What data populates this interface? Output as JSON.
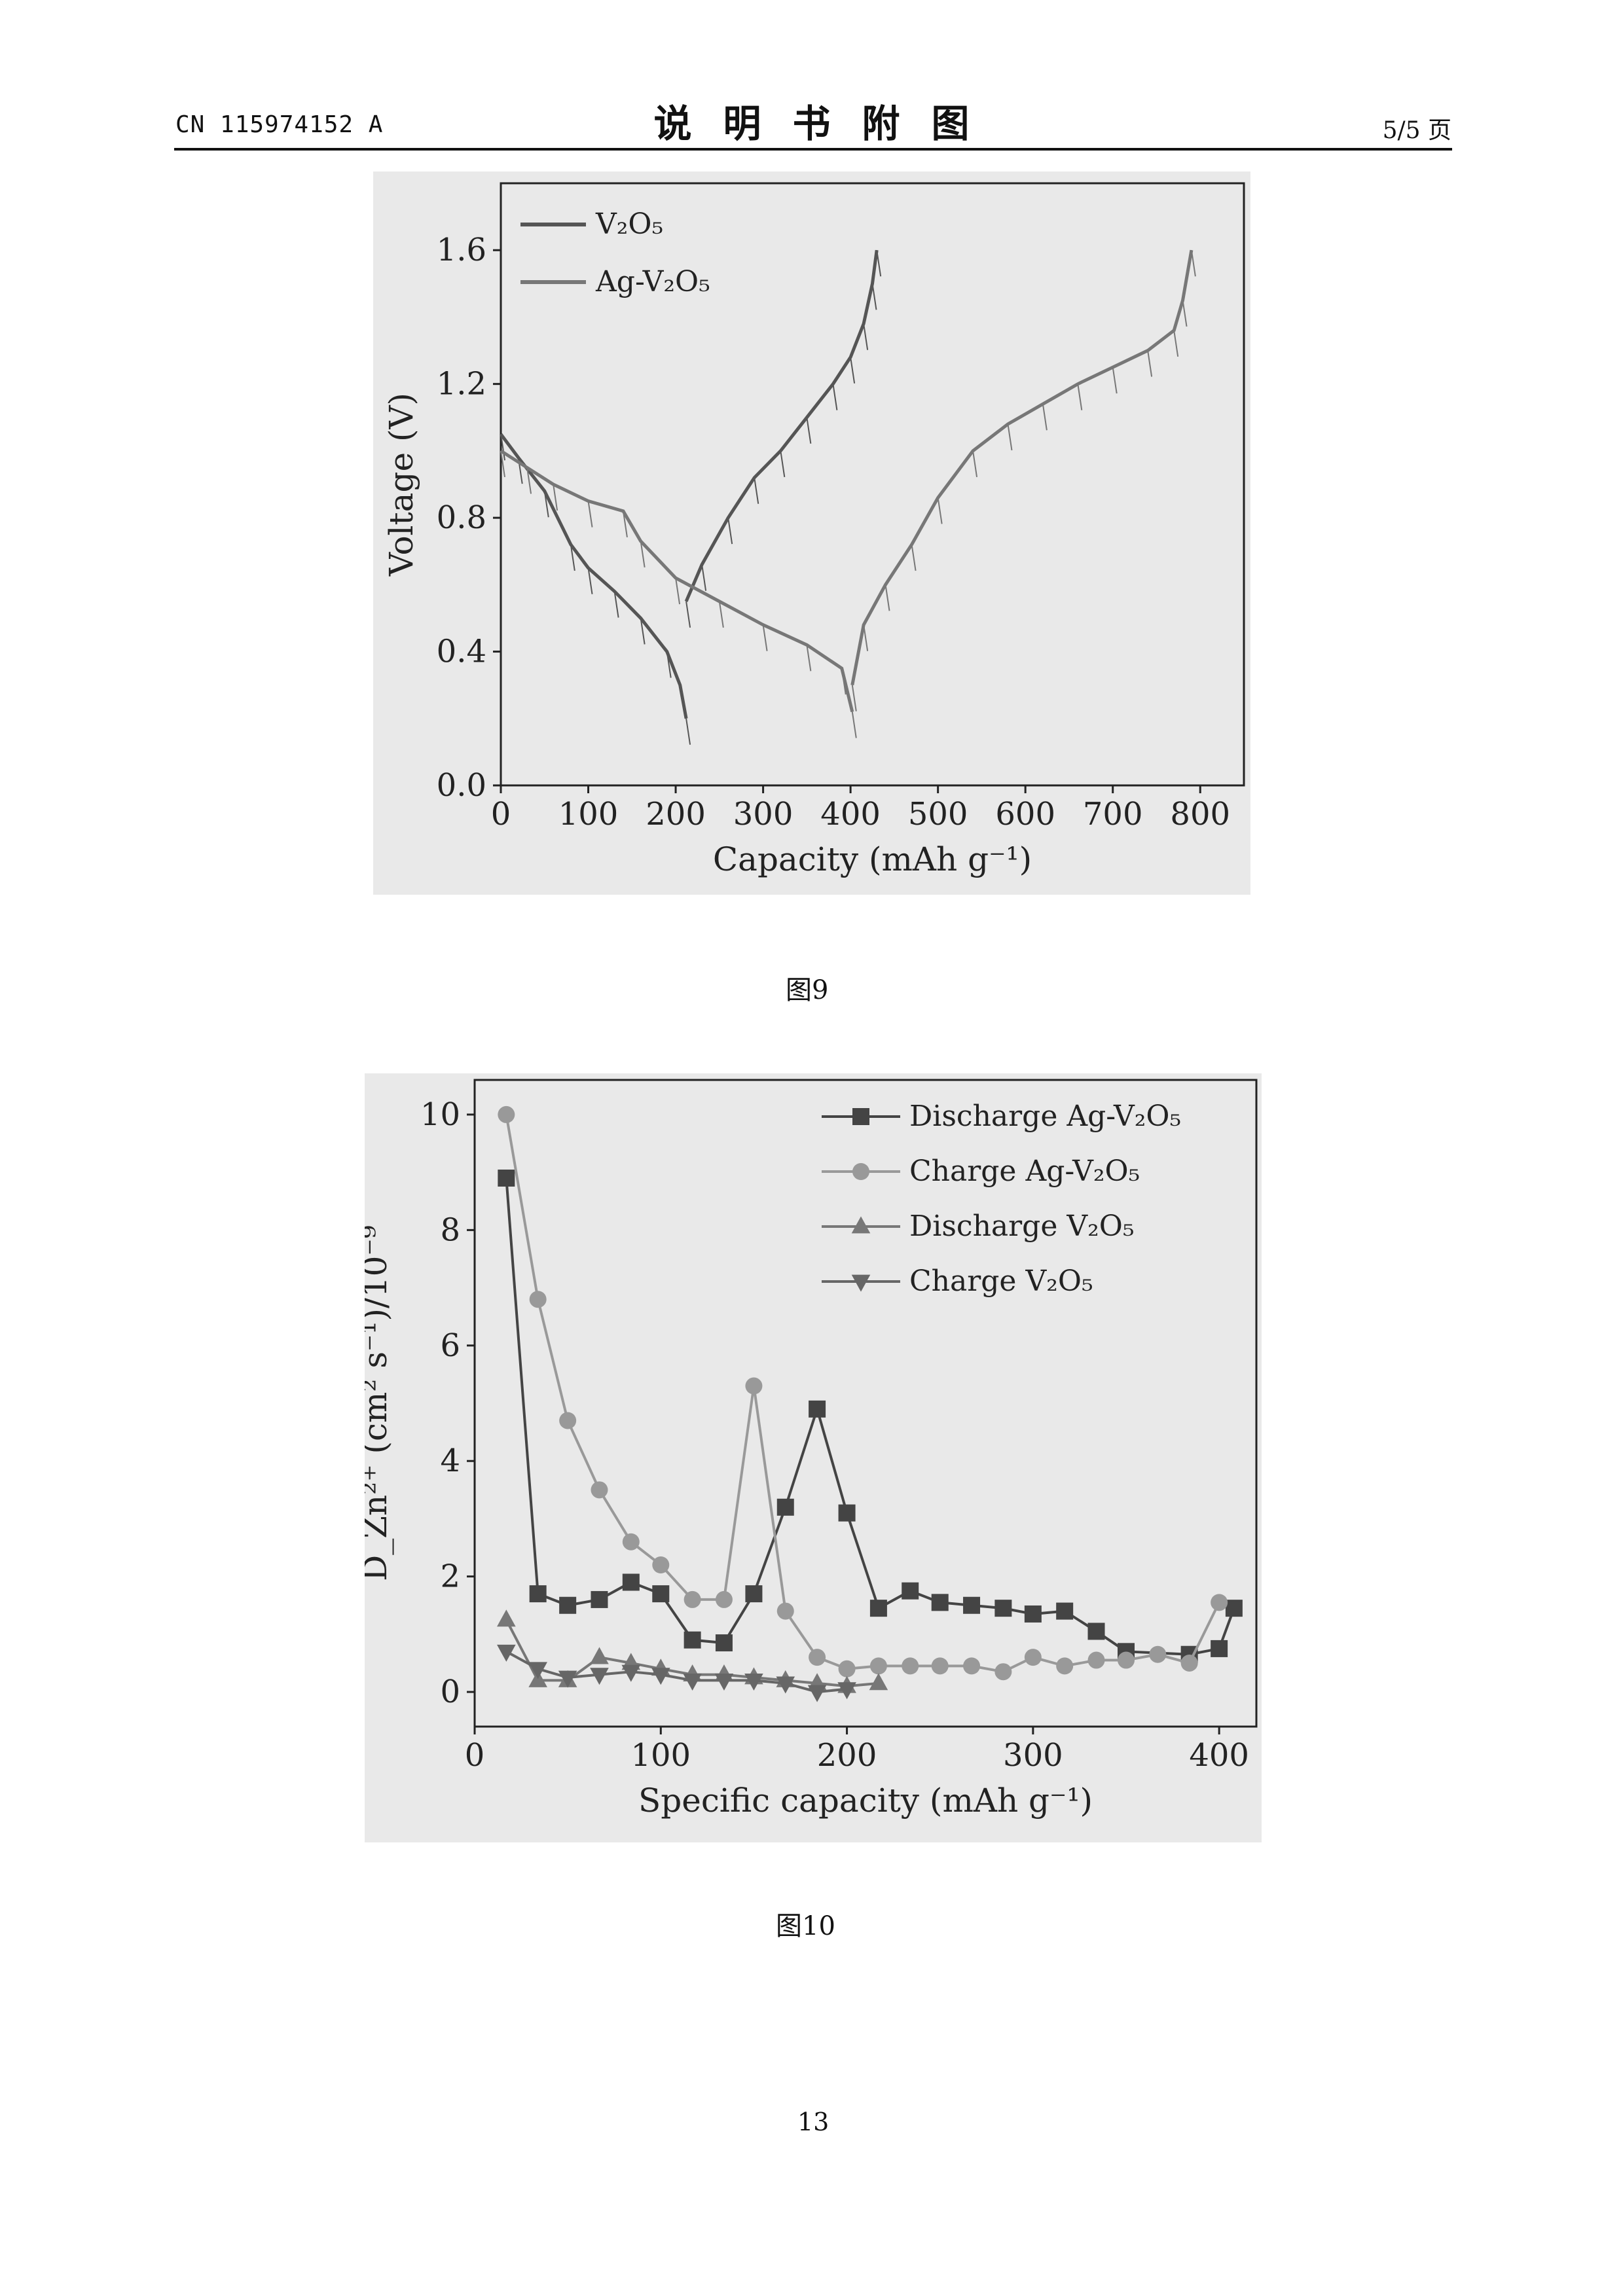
{
  "header": {
    "patent_no": "CN 115974152 A",
    "section_title": "说明书附图",
    "page_of": "5/5 页"
  },
  "captions": {
    "fig9": "图9",
    "fig10": "图10"
  },
  "page_number": "13",
  "colors": {
    "axis": "#222222",
    "v2o5": "#555555",
    "ag_v2o5": "#777777",
    "discharge_ag": "#444444",
    "charge_ag": "#999999",
    "discharge_v": "#777777",
    "charge_v": "#666666"
  },
  "chart_data": [
    {
      "type": "line",
      "title": "",
      "xlabel": "Capacity (mAh g⁻¹)",
      "ylabel": "Voltage (V)",
      "xlim": [
        0,
        850
      ],
      "ylim": [
        0,
        1.8
      ],
      "xticks": [
        "0",
        "100",
        "200",
        "300",
        "400",
        "500",
        "600",
        "700",
        "800"
      ],
      "yticks": [
        "0.0",
        "0.4",
        "0.8",
        "1.2",
        "1.6"
      ],
      "grid": false,
      "legend": "top-left",
      "series": [
        {
          "name": "V₂O₅",
          "discharge": [
            [
              0,
              1.05
            ],
            [
              20,
              0.98
            ],
            [
              50,
              0.88
            ],
            [
              80,
              0.72
            ],
            [
              100,
              0.65
            ],
            [
              130,
              0.58
            ],
            [
              160,
              0.5
            ],
            [
              190,
              0.4
            ],
            [
              205,
              0.3
            ],
            [
              212,
              0.2
            ]
          ],
          "charge": [
            [
              212,
              0.55
            ],
            [
              230,
              0.66
            ],
            [
              260,
              0.8
            ],
            [
              290,
              0.92
            ],
            [
              320,
              1.0
            ],
            [
              350,
              1.1
            ],
            [
              380,
              1.2
            ],
            [
              400,
              1.28
            ],
            [
              415,
              1.38
            ],
            [
              425,
              1.5
            ],
            [
              430,
              1.6
            ]
          ]
        },
        {
          "name": "Ag-V₂O₅",
          "discharge": [
            [
              0,
              1.0
            ],
            [
              30,
              0.95
            ],
            [
              60,
              0.9
            ],
            [
              100,
              0.85
            ],
            [
              140,
              0.82
            ],
            [
              160,
              0.73
            ],
            [
              200,
              0.62
            ],
            [
              250,
              0.55
            ],
            [
              300,
              0.48
            ],
            [
              350,
              0.42
            ],
            [
              390,
              0.35
            ],
            [
              402,
              0.22
            ]
          ],
          "charge": [
            [
              402,
              0.3
            ],
            [
              415,
              0.48
            ],
            [
              440,
              0.6
            ],
            [
              470,
              0.72
            ],
            [
              500,
              0.86
            ],
            [
              540,
              1.0
            ],
            [
              580,
              1.08
            ],
            [
              620,
              1.14
            ],
            [
              660,
              1.2
            ],
            [
              700,
              1.25
            ],
            [
              740,
              1.3
            ],
            [
              770,
              1.36
            ],
            [
              780,
              1.45
            ],
            [
              790,
              1.6
            ]
          ]
        }
      ]
    },
    {
      "type": "line",
      "title": "",
      "xlabel": "Specific capacity (mAh g⁻¹)",
      "ylabel": "D_Zn²⁺ (cm² s⁻¹)/10⁻⁹",
      "xlim": [
        0,
        420
      ],
      "ylim": [
        -0.6,
        10.6
      ],
      "xticks": [
        "0",
        "100",
        "200",
        "300",
        "400"
      ],
      "yticks": [
        "0",
        "2",
        "4",
        "6",
        "8",
        "10"
      ],
      "grid": false,
      "legend": "top-right",
      "series": [
        {
          "name": "Discharge Ag-V₂O₅",
          "marker": "square",
          "points": [
            [
              17,
              8.9
            ],
            [
              34,
              1.7
            ],
            [
              50,
              1.5
            ],
            [
              67,
              1.6
            ],
            [
              84,
              1.9
            ],
            [
              100,
              1.7
            ],
            [
              117,
              0.9
            ],
            [
              134,
              0.85
            ],
            [
              150,
              1.7
            ],
            [
              167,
              3.2
            ],
            [
              184,
              4.9
            ],
            [
              200,
              3.1
            ],
            [
              217,
              1.45
            ],
            [
              234,
              1.75
            ],
            [
              250,
              1.55
            ],
            [
              267,
              1.5
            ],
            [
              284,
              1.45
            ],
            [
              300,
              1.35
            ],
            [
              317,
              1.4
            ],
            [
              334,
              1.05
            ],
            [
              350,
              0.7
            ],
            [
              384,
              0.65
            ],
            [
              400,
              0.75
            ],
            [
              408,
              1.45
            ]
          ]
        },
        {
          "name": "Charge Ag-V₂O₅",
          "marker": "circle",
          "points": [
            [
              17,
              10.0
            ],
            [
              34,
              6.8
            ],
            [
              50,
              4.7
            ],
            [
              67,
              3.5
            ],
            [
              84,
              2.6
            ],
            [
              100,
              2.2
            ],
            [
              117,
              1.6
            ],
            [
              134,
              1.6
            ],
            [
              150,
              5.3
            ],
            [
              167,
              1.4
            ],
            [
              184,
              0.6
            ],
            [
              200,
              0.4
            ],
            [
              217,
              0.45
            ],
            [
              234,
              0.45
            ],
            [
              250,
              0.45
            ],
            [
              267,
              0.45
            ],
            [
              284,
              0.35
            ],
            [
              300,
              0.6
            ],
            [
              317,
              0.45
            ],
            [
              334,
              0.55
            ],
            [
              350,
              0.55
            ],
            [
              367,
              0.65
            ],
            [
              384,
              0.5
            ],
            [
              400,
              1.55
            ]
          ]
        },
        {
          "name": "Discharge V₂O₅",
          "marker": "triangle-up",
          "points": [
            [
              17,
              1.25
            ],
            [
              34,
              0.2
            ],
            [
              50,
              0.2
            ],
            [
              67,
              0.6
            ],
            [
              84,
              0.5
            ],
            [
              100,
              0.4
            ],
            [
              117,
              0.3
            ],
            [
              134,
              0.3
            ],
            [
              150,
              0.25
            ],
            [
              167,
              0.2
            ],
            [
              184,
              0.15
            ],
            [
              200,
              0.1
            ],
            [
              217,
              0.15
            ]
          ]
        },
        {
          "name": "Charge V₂O₅",
          "marker": "triangle-down",
          "points": [
            [
              17,
              0.7
            ],
            [
              34,
              0.4
            ],
            [
              50,
              0.25
            ],
            [
              67,
              0.3
            ],
            [
              84,
              0.35
            ],
            [
              100,
              0.3
            ],
            [
              117,
              0.2
            ],
            [
              134,
              0.2
            ],
            [
              150,
              0.2
            ],
            [
              167,
              0.15
            ],
            [
              184,
              0.0
            ],
            [
              200,
              0.05
            ]
          ]
        }
      ]
    }
  ]
}
